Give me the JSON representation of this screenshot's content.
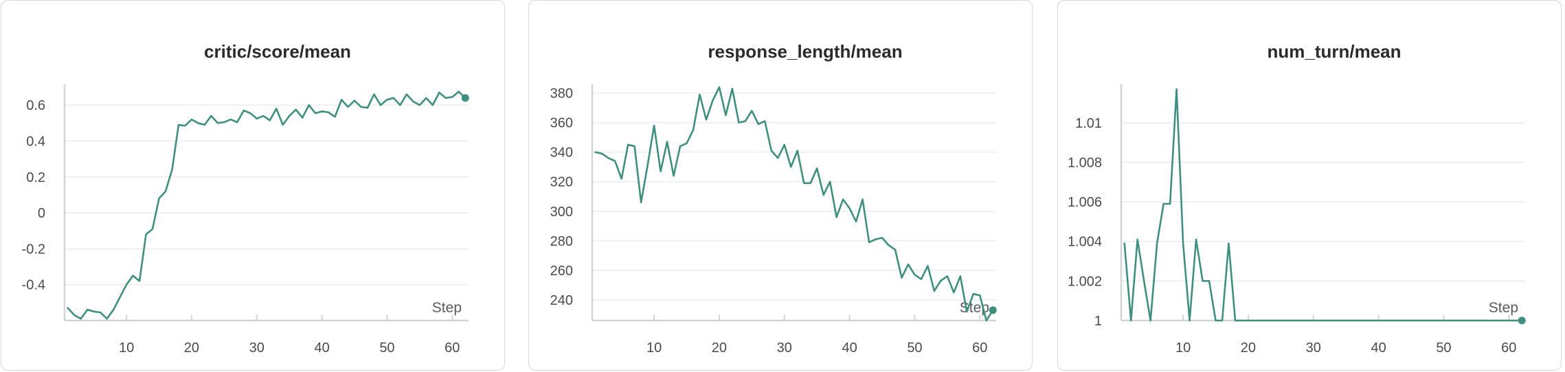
{
  "theme": {
    "series_color": "#3f8f7f",
    "grid_color": "#ececef",
    "axis_color": "#d4d4d8",
    "border_color": "#d6d6d9"
  },
  "chart_data": [
    {
      "type": "line",
      "title": "critic/score/mean",
      "xlabel": "Step",
      "ylabel": "",
      "xlim": [
        0.5,
        62.5
      ],
      "ylim": [
        -0.6,
        0.7
      ],
      "xticks": [
        10,
        20,
        30,
        40,
        50,
        60
      ],
      "yticks": [
        -0.4,
        -0.2,
        0,
        0.2,
        0.4,
        0.6
      ],
      "ytick_labels": [
        "-0.4",
        "-0.2",
        "0",
        "0.2",
        "0.4",
        "0.6"
      ],
      "grid": true,
      "series": [
        {
          "x": [
            1,
            2,
            3,
            4,
            5,
            6,
            7,
            8,
            9,
            10,
            11,
            12,
            13,
            14,
            15,
            16,
            17,
            18,
            19,
            20,
            21,
            22,
            23,
            24,
            25,
            26,
            27,
            28,
            29,
            30,
            31,
            32,
            33,
            34,
            35,
            36,
            37,
            38,
            39,
            40,
            41,
            42,
            43,
            44,
            45,
            46,
            47,
            48,
            49,
            50,
            51,
            52,
            53,
            54,
            55,
            56,
            57,
            58,
            59,
            60,
            61,
            62
          ],
          "values": [
            -0.53,
            -0.57,
            -0.59,
            -0.54,
            -0.55,
            -0.555,
            -0.59,
            -0.54,
            -0.47,
            -0.4,
            -0.35,
            -0.38,
            -0.12,
            -0.09,
            0.08,
            0.12,
            0.24,
            0.49,
            0.485,
            0.52,
            0.5,
            0.49,
            0.54,
            0.5,
            0.505,
            0.52,
            0.505,
            0.57,
            0.555,
            0.525,
            0.54,
            0.515,
            0.58,
            0.49,
            0.54,
            0.575,
            0.53,
            0.6,
            0.555,
            0.565,
            0.56,
            0.535,
            0.63,
            0.59,
            0.625,
            0.59,
            0.585,
            0.66,
            0.6,
            0.63,
            0.64,
            0.6,
            0.66,
            0.62,
            0.6,
            0.64,
            0.6,
            0.67,
            0.64,
            0.645,
            0.675,
            0.64
          ]
        }
      ]
    },
    {
      "type": "line",
      "title": "response_length/mean",
      "xlabel": "Step",
      "ylabel": "",
      "xlim": [
        0.5,
        62.5
      ],
      "ylim": [
        226,
        384
      ],
      "xticks": [
        10,
        20,
        30,
        40,
        50,
        60
      ],
      "yticks": [
        240,
        260,
        280,
        300,
        320,
        340,
        360,
        380
      ],
      "ytick_labels": [
        "240",
        "260",
        "280",
        "300",
        "320",
        "340",
        "360",
        "380"
      ],
      "grid": true,
      "series": [
        {
          "x": [
            1,
            2,
            3,
            4,
            5,
            6,
            7,
            8,
            9,
            10,
            11,
            12,
            13,
            14,
            15,
            16,
            17,
            18,
            19,
            20,
            21,
            22,
            23,
            24,
            25,
            26,
            27,
            28,
            29,
            30,
            31,
            32,
            33,
            34,
            35,
            36,
            37,
            38,
            39,
            40,
            41,
            42,
            43,
            44,
            45,
            46,
            47,
            48,
            49,
            50,
            51,
            52,
            53,
            54,
            55,
            56,
            57,
            58,
            59,
            60,
            61,
            62
          ],
          "values": [
            340,
            339,
            336,
            334,
            322,
            345,
            344,
            306,
            331,
            358,
            327,
            347,
            324,
            344,
            346,
            355,
            379,
            362,
            375,
            384,
            365,
            383,
            360,
            361,
            368,
            359,
            361,
            341,
            336,
            345,
            330,
            341,
            319,
            319,
            329,
            311,
            320,
            296,
            308,
            302,
            293,
            308,
            279,
            281,
            282,
            277,
            274,
            255,
            264,
            257,
            254,
            263,
            246,
            253,
            256,
            245,
            256,
            232,
            244,
            243,
            226,
            233
          ]
        }
      ]
    },
    {
      "type": "line",
      "title": "num_turn/mean",
      "xlabel": "Step",
      "ylabel": "",
      "xlim": [
        0.5,
        62.5
      ],
      "ylim": [
        1,
        1.0118
      ],
      "xticks": [
        10,
        20,
        30,
        40,
        50,
        60
      ],
      "yticks": [
        1,
        1.002,
        1.004,
        1.006,
        1.008,
        1.01
      ],
      "ytick_labels": [
        "1",
        "1.002",
        "1.004",
        "1.006",
        "1.008",
        "1.01"
      ],
      "grid": true,
      "series": [
        {
          "x": [
            1,
            2,
            3,
            4,
            5,
            6,
            7,
            8,
            9,
            10,
            11,
            12,
            13,
            14,
            15,
            16,
            17,
            18,
            19,
            20,
            21,
            22,
            23,
            24,
            25,
            26,
            27,
            28,
            29,
            30,
            31,
            32,
            33,
            34,
            35,
            36,
            37,
            38,
            39,
            40,
            41,
            42,
            43,
            44,
            45,
            46,
            47,
            48,
            49,
            50,
            51,
            52,
            53,
            54,
            55,
            56,
            57,
            58,
            59,
            60,
            61,
            62
          ],
          "values": [
            1.0039,
            1,
            1.0041,
            1.002,
            1,
            1.0039,
            1.0059,
            1.0059,
            1.0117,
            1.0039,
            1,
            1.0041,
            1.002,
            1.002,
            1,
            1,
            1.0039,
            1,
            1,
            1,
            1,
            1,
            1,
            1,
            1,
            1,
            1,
            1,
            1,
            1,
            1,
            1,
            1,
            1,
            1,
            1,
            1,
            1,
            1,
            1,
            1,
            1,
            1,
            1,
            1,
            1,
            1,
            1,
            1,
            1,
            1,
            1,
            1,
            1,
            1,
            1,
            1,
            1,
            1,
            1,
            1,
            1
          ]
        }
      ]
    }
  ]
}
